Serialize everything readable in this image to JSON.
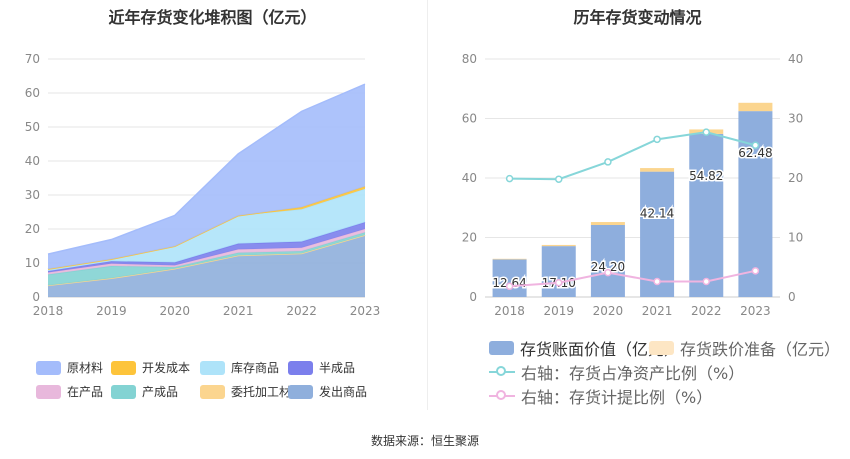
{
  "source_label": "数据来源：恒生聚源",
  "chart_data": [
    {
      "type": "area",
      "stacked": true,
      "title": "近年存货变化堆积图（亿元）",
      "categories": [
        "2018",
        "2019",
        "2020",
        "2021",
        "2022",
        "2023"
      ],
      "ylim": [
        0,
        70
      ],
      "yticks": [
        "0",
        "10",
        "20",
        "30",
        "40",
        "50",
        "60",
        "70"
      ],
      "series": [
        {
          "name": "发出商品",
          "color": "#8fafdc",
          "values": [
            3.4,
            5.5,
            8.3,
            12.2,
            12.8,
            18.2
          ]
        },
        {
          "name": "委托加工材料",
          "color": "#fbd58f",
          "values": [
            0,
            0,
            0,
            0,
            0,
            0
          ]
        },
        {
          "name": "产成品",
          "color": "#83d3d3",
          "values": [
            3.2,
            3.6,
            0.5,
            0.8,
            0.7,
            0.8
          ]
        },
        {
          "name": "在产品",
          "color": "#e8b8dc",
          "values": [
            0.6,
            0.7,
            0.5,
            1.0,
            1.0,
            1.0
          ]
        },
        {
          "name": "半成品",
          "color": "#7b7fec",
          "values": [
            0.4,
            0.7,
            0.9,
            1.7,
            1.8,
            2.0
          ]
        },
        {
          "name": "库存商品",
          "color": "#aee3f9",
          "values": [
            0.6,
            0.6,
            4.7,
            8.2,
            9.5,
            9.8
          ]
        },
        {
          "name": "开发成本",
          "color": "#fdc43b",
          "values": [
            0,
            0,
            0,
            0,
            0.6,
            0.7
          ]
        },
        {
          "name": "原材料",
          "color": "#a4bcfb",
          "values": [
            4.4,
            5.8,
            9.1,
            18.2,
            28.2,
            30.1
          ]
        }
      ],
      "legend_order": [
        "原材料",
        "开发成本",
        "库存商品",
        "半成品",
        "在产品",
        "产成品",
        "委托加工材料",
        "发出商品"
      ]
    },
    {
      "type": "bar+line",
      "title": "历年存货变动情况",
      "categories": [
        "2018",
        "2019",
        "2020",
        "2021",
        "2022",
        "2023"
      ],
      "ylim_left": [
        0,
        80
      ],
      "yticks_left": [
        "0",
        "20",
        "40",
        "60",
        "80"
      ],
      "ylim_right": [
        0,
        40
      ],
      "yticks_right": [
        "0",
        "10",
        "20",
        "30",
        "40"
      ],
      "bars": [
        {
          "name": "存货账面价值（亿元）",
          "color": "#8eaedd",
          "values": [
            12.64,
            17.1,
            24.2,
            42.14,
            54.82,
            62.48
          ],
          "labels": [
            "12.64",
            "17.10",
            "24.20",
            "42.14",
            "54.82",
            "62.48"
          ]
        },
        {
          "name": "存货跌价准备（亿元）",
          "color": "#fbd58f",
          "values": [
            0.2,
            0.4,
            1.0,
            1.2,
            1.5,
            2.8
          ]
        }
      ],
      "lines": [
        {
          "name": "右轴：存货占净资产比例（%）",
          "color": "#86d6d9",
          "values": [
            19.9,
            19.8,
            22.7,
            26.5,
            27.7,
            25.5
          ]
        },
        {
          "name": "右轴：存货计提比例（%）",
          "color": "#f0b4e0",
          "values": [
            1.8,
            2.4,
            4.1,
            2.6,
            2.6,
            4.4
          ]
        }
      ]
    }
  ]
}
